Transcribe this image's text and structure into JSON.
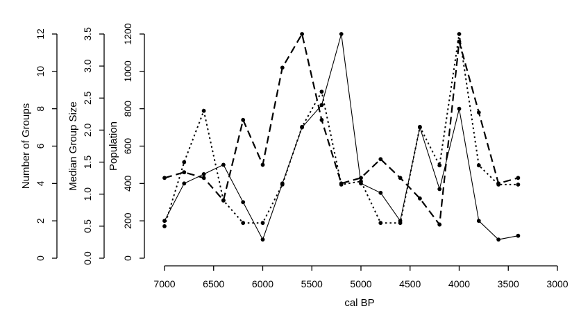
{
  "chart_data": {
    "type": "line",
    "title": "",
    "xlabel": "cal BP",
    "x": [
      7000,
      6800,
      6600,
      6400,
      6200,
      6000,
      5800,
      5600,
      5400,
      5200,
      5000,
      4800,
      4600,
      4400,
      4200,
      4000,
      3800,
      3600,
      3400
    ],
    "xlim": [
      7000,
      3000
    ],
    "x_ticks": [
      7000,
      6500,
      6000,
      5500,
      5000,
      4500,
      4000,
      3500,
      3000
    ],
    "grid": false,
    "legend": "none",
    "y_axes": [
      {
        "label": "Number of Groups",
        "ylim": [
          0,
          12
        ],
        "ticks": [
          0,
          2,
          4,
          6,
          8,
          10,
          12
        ],
        "tick_labels": [
          "0",
          "2",
          "4",
          "6",
          "8",
          "10",
          "12"
        ]
      },
      {
        "label": "Median Group Size",
        "ylim": [
          0,
          3.5
        ],
        "ticks": [
          0,
          0.5,
          1,
          1.5,
          2,
          2.5,
          3,
          3.5
        ],
        "tick_labels": [
          "0.0",
          "0.5",
          "1.0",
          "1.5",
          "2.0",
          "2.5",
          "3.0",
          "3.5"
        ]
      },
      {
        "label": "Population",
        "ylim": [
          0,
          1200
        ],
        "ticks": [
          0,
          200,
          400,
          600,
          800,
          1000,
          1200
        ],
        "tick_labels": [
          "0",
          "200",
          "400",
          "600",
          "800",
          "1000",
          "1200"
        ]
      }
    ],
    "series": [
      {
        "axis": 2,
        "line_style": "solid",
        "values": [
          200,
          400,
          450,
          500,
          300,
          100,
          400,
          700,
          820,
          1200,
          400,
          350,
          200,
          700,
          370,
          800,
          200,
          100,
          120
        ]
      },
      {
        "axis": 1,
        "line_style": "dotted",
        "values": [
          0.5,
          1.5,
          2.3,
          0.9,
          0.55,
          0.55,
          1.15,
          2.05,
          2.6,
          1.15,
          1.2,
          0.55,
          0.55,
          2.05,
          1.45,
          3.5,
          1.45,
          1.15,
          1.15
        ]
      },
      {
        "axis": 0,
        "line_style": "dashed",
        "values": [
          4.3,
          4.6,
          4.3,
          3.1,
          7.4,
          5.0,
          10.2,
          12.0,
          7.4,
          4.0,
          4.3,
          5.3,
          4.3,
          3.2,
          1.8,
          11.6,
          7.8,
          4.0,
          4.3
        ]
      }
    ]
  }
}
